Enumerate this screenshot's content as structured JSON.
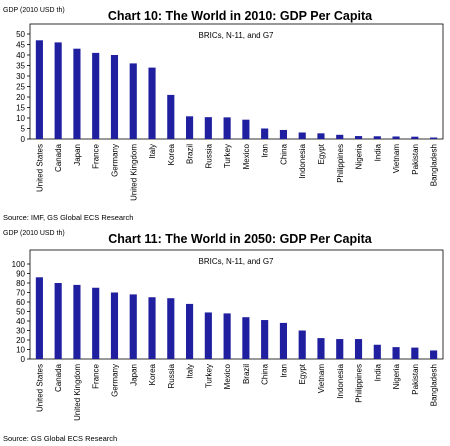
{
  "chart_data": [
    {
      "type": "bar",
      "title": "Chart 10:  The World in 2010:  GDP Per Capita",
      "ylabel": "GDP (2010 USD th)",
      "subtitle": "BRICs, N-11, and G7",
      "source": "Source: IMF, GS Global ECS Research",
      "ylim": [
        0,
        50
      ],
      "yticks": [
        0,
        5,
        10,
        15,
        20,
        25,
        30,
        35,
        40,
        45,
        50
      ],
      "grid": false,
      "bar_color": "#1f1fa0",
      "categories": [
        "United States",
        "Canada",
        "Japan",
        "France",
        "Germany",
        "United Kingdom",
        "Italy",
        "Korea",
        "Brazil",
        "Russia",
        "Turkey",
        "Mexico",
        "Iran",
        "China",
        "Indonesia",
        "Egypt",
        "Philippines",
        "Nigeria",
        "India",
        "Vietnam",
        "Pakistan",
        "Bangladesh"
      ],
      "values": [
        47,
        46,
        43,
        41,
        40,
        36,
        34,
        21,
        10.8,
        10.4,
        10.3,
        9.2,
        5.0,
        4.3,
        3.1,
        2.7,
        2.0,
        1.4,
        1.3,
        1.2,
        1.1,
        0.7
      ]
    },
    {
      "type": "bar",
      "title": "Chart 11:  The World in 2050:  GDP Per Capita",
      "ylabel": "GDP (2010 USD th)",
      "subtitle": "BRICs, N-11, and G7",
      "source": "Source: GS Global ECS Research",
      "ylim": [
        0,
        100
      ],
      "yticks": [
        0,
        10,
        20,
        30,
        40,
        50,
        60,
        70,
        80,
        90,
        100
      ],
      "grid": false,
      "bar_color": "#1f1fa0",
      "categories": [
        "United States",
        "Canada",
        "United Kingdom",
        "France",
        "Germany",
        "Japan",
        "Korea",
        "Russia",
        "Italy",
        "Turkey",
        "Mexico",
        "Brazil",
        "China",
        "Iran",
        "Egypt",
        "Vietnam",
        "Indonesia",
        "Philippines",
        "India",
        "Nigeria",
        "Pakistan",
        "Bangladesh"
      ],
      "values": [
        86,
        80,
        78,
        75,
        70,
        68,
        65,
        64,
        58,
        49,
        48,
        44,
        41,
        38,
        30,
        22,
        21,
        21,
        15,
        12.5,
        12,
        9
      ]
    }
  ]
}
